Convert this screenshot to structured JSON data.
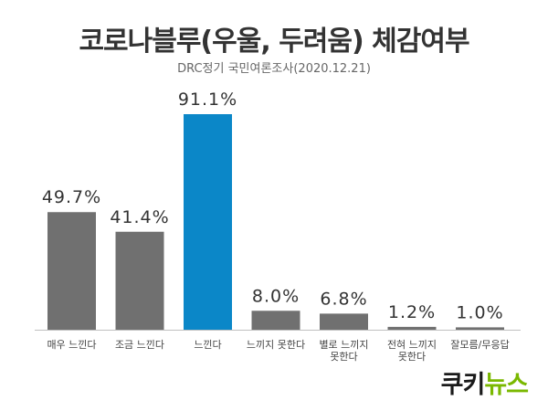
{
  "title": "코로나블루(우울, 두려움) 체감여부",
  "subtitle": "DRC정기 국민여론조사(2020.12.21)",
  "logo": {
    "part1": "쿠키",
    "part2": "뉴스"
  },
  "colors": {
    "bar": "#707070",
    "highlight": "#0b87c8",
    "baseline": "#bfbfbf"
  },
  "chart_data": {
    "type": "bar",
    "title": "코로나블루(우울, 두려움) 체감여부",
    "subtitle": "DRC정기 국민여론조사(2020.12.21)",
    "categories": [
      [
        "매우 느낀다"
      ],
      [
        "조금 느낀다"
      ],
      [
        "느낀다"
      ],
      [
        "느끼지 못한다"
      ],
      [
        "별로 느끼지",
        "못한다"
      ],
      [
        "전혀 느끼지",
        "못한다"
      ],
      [
        "잘모름/무응답"
      ]
    ],
    "values": [
      49.7,
      41.4,
      91.1,
      8.0,
      6.8,
      1.2,
      1.0
    ],
    "value_labels": [
      "49.7%",
      "41.4%",
      "91.1%",
      "8.0%",
      "6.8%",
      "1.2%",
      "1.0%"
    ],
    "highlight_index": 2,
    "ylim": [
      0,
      100
    ],
    "grid": false,
    "legend": "none"
  }
}
